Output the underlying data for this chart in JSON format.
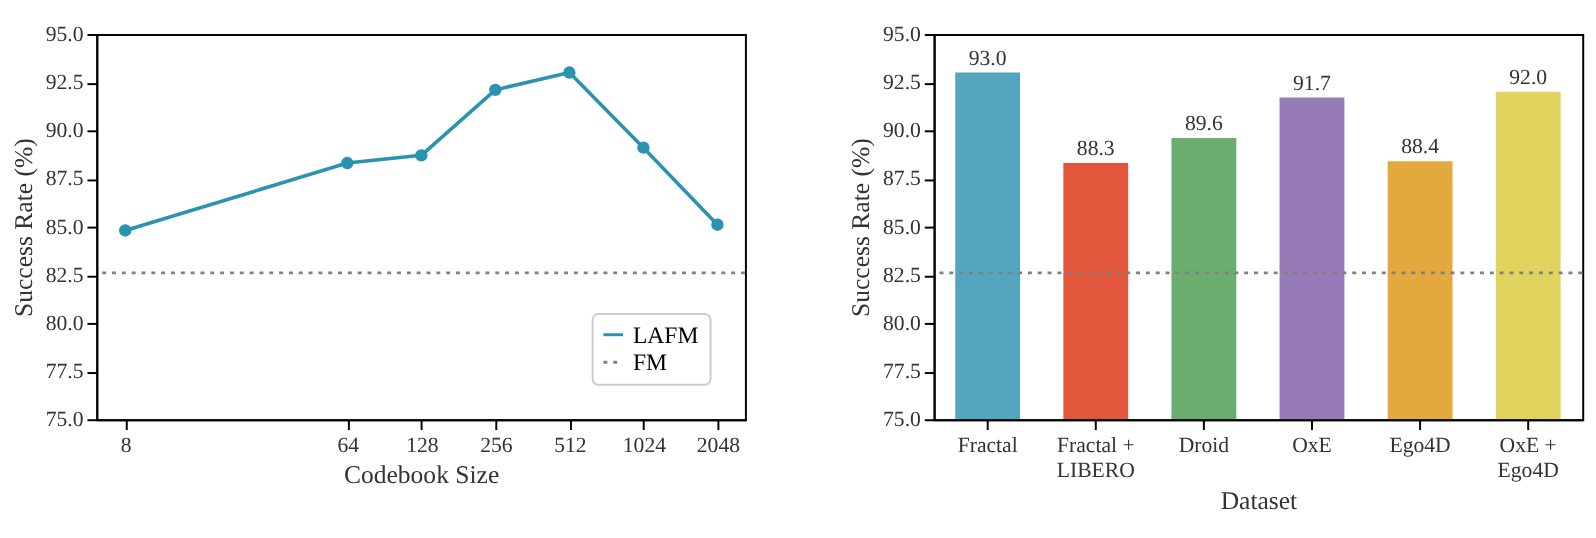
{
  "chart_data": [
    {
      "type": "line",
      "xlabel": "Codebook Size",
      "ylabel": "Success Rate (%)",
      "log": "x",
      "x": [
        8,
        64,
        128,
        256,
        512,
        1024,
        2048
      ],
      "series": [
        {
          "name": "LAFM",
          "color": "#2a93af",
          "values": [
            84.8,
            88.3,
            88.7,
            92.1,
            93.0,
            89.1,
            85.1
          ]
        }
      ],
      "marker": "circle",
      "line_style": "solid",
      "ref_lines": [
        {
          "axis": "y",
          "value": 82.6,
          "label": "FM",
          "color": "#808080",
          "line_style": "dotted"
        }
      ],
      "xlim": [
        6.1,
        2650
      ],
      "xticks": [
        8,
        64,
        128,
        256,
        512,
        1024,
        2048
      ],
      "ylim": [
        75,
        95
      ],
      "yticks": [
        {
          "value": 75,
          "label": "75.0"
        },
        {
          "value": 77.5,
          "label": "77.5"
        },
        {
          "value": 80,
          "label": "80.0"
        },
        {
          "value": 82.5,
          "label": "82.5"
        },
        {
          "value": 85,
          "label": "85.0"
        },
        {
          "value": 87.5,
          "label": "87.5"
        },
        {
          "value": 90,
          "label": "90.0"
        },
        {
          "value": 92.5,
          "label": "92.5"
        },
        {
          "value": 95,
          "label": "95.0"
        }
      ],
      "grid": false,
      "legend": "bottom right"
    },
    {
      "type": "bar",
      "xlabel": "Dataset",
      "ylabel": "Success Rate (%)",
      "categories": [
        "Fractal",
        "Fractal +\nLIBERO",
        "Droid",
        "OxE",
        "Ego4D",
        "OxE +\nEgo4D"
      ],
      "values": [
        93.0,
        88.3,
        89.6,
        91.7,
        88.4,
        92.0
      ],
      "colors": [
        "#53a6bd",
        "#e2573b",
        "#6aad6e",
        "#977bb9",
        "#e4a93e",
        "#e0d45f"
      ],
      "value_labels": [
        "93.0",
        "88.3",
        "89.6",
        "91.7",
        "88.4",
        "92.0"
      ],
      "ref_lines": [
        {
          "axis": "y",
          "value": 82.6,
          "color": "#808080",
          "line_style": "dotted"
        }
      ],
      "ylim": [
        75,
        95
      ],
      "yticks": [
        {
          "value": 75,
          "label": "75.0"
        },
        {
          "value": 77.5,
          "label": "77.5"
        },
        {
          "value": 80,
          "label": "80.0"
        },
        {
          "value": 82.5,
          "label": "82.5"
        },
        {
          "value": 85,
          "label": "85.0"
        },
        {
          "value": 87.5,
          "label": "87.5"
        },
        {
          "value": 90,
          "label": "90.0"
        },
        {
          "value": 92.5,
          "label": "92.5"
        },
        {
          "value": 95,
          "label": "95.0"
        }
      ],
      "grid": false,
      "legend": false
    }
  ]
}
